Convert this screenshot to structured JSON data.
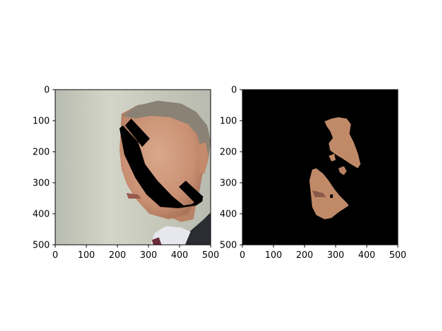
{
  "chart_data": [
    {
      "type": "image",
      "content": "photo of an older man in a suit, face partly covered by a black handset-shaped mask",
      "xlim": [
        0,
        500
      ],
      "ylim": [
        500,
        0
      ],
      "xticks": [
        "0",
        "100",
        "200",
        "300",
        "400",
        "500"
      ],
      "yticks": [
        "0",
        "100",
        "200",
        "300",
        "400",
        "500"
      ],
      "grid": false
    },
    {
      "type": "image",
      "content": "black background with only skin-colored segmented regions of the face visible",
      "xlim": [
        0,
        500
      ],
      "ylim": [
        500,
        0
      ],
      "xticks": [
        "0",
        "100",
        "200",
        "300",
        "400",
        "500"
      ],
      "yticks": [
        "0",
        "100",
        "200",
        "300",
        "400",
        "500"
      ],
      "grid": false
    }
  ]
}
